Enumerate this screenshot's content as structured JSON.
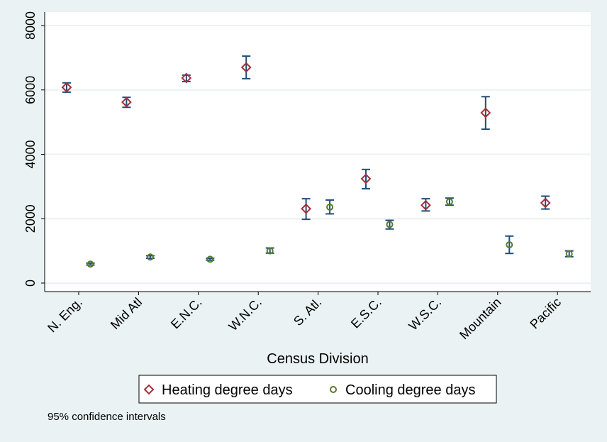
{
  "chart_data": {
    "type": "scatter",
    "xlabel": "Census Division",
    "ylabel": "",
    "ylim": [
      0,
      8000
    ],
    "yticks": [
      0,
      2000,
      4000,
      6000,
      8000
    ],
    "grid": true,
    "legend_placement": "bottom",
    "categories": [
      "N. Eng.",
      "Mid Atl",
      "E.N.C.",
      "W.N.C.",
      "S. Atl.",
      "E.S.C.",
      "W.S.C.",
      "Mountain",
      "Pacific"
    ],
    "series": [
      {
        "name": "Heating degree days",
        "marker": "diamond",
        "color": "#a3303a",
        "values": [
          6080,
          5620,
          6370,
          6700,
          2310,
          3240,
          2420,
          5290,
          2490
        ],
        "ci_low": [
          5930,
          5460,
          6260,
          6350,
          1980,
          2930,
          2240,
          4780,
          2300
        ],
        "ci_high": [
          6220,
          5770,
          6460,
          7050,
          2620,
          3530,
          2620,
          5790,
          2700
        ]
      },
      {
        "name": "Cooling degree days",
        "marker": "circle",
        "color": "#5a7a2a",
        "values": [
          590,
          810,
          740,
          1000,
          2360,
          1820,
          2530,
          1190,
          910
        ],
        "ci_low": [
          560,
          770,
          710,
          930,
          2150,
          1680,
          2420,
          920,
          820
        ],
        "ci_high": [
          620,
          850,
          770,
          1090,
          2580,
          1950,
          2640,
          1460,
          1000
        ]
      }
    ],
    "ci_color": "#1f4e79",
    "note": "95% confidence intervals"
  }
}
